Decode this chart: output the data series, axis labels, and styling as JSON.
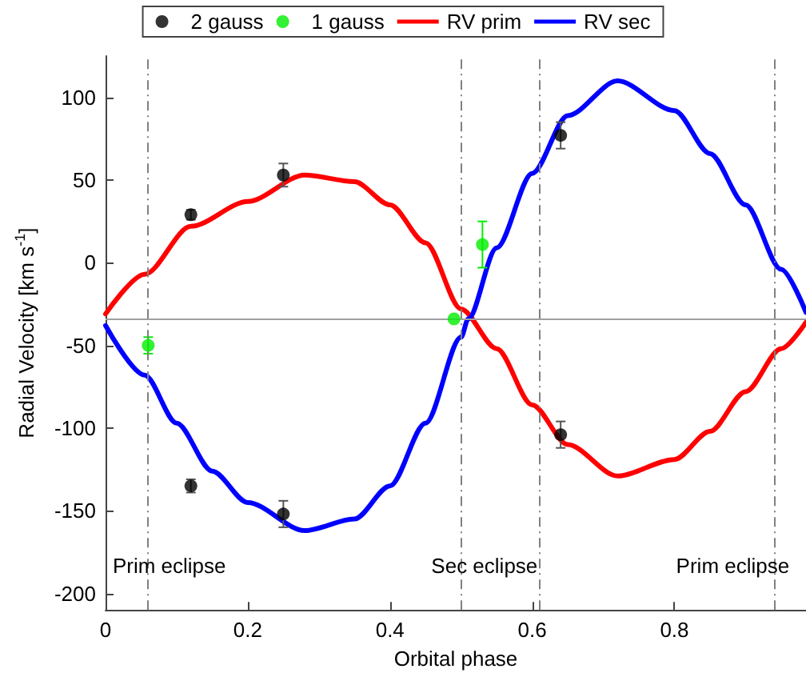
{
  "chart_data": {
    "type": "scatter",
    "xlabel": "Orbital phase",
    "ylabel": "Radial Velocity [km s$^{-1}$]",
    "xlim": [
      0,
      0.985
    ],
    "xticks": [
      0,
      0.2,
      0.4,
      0.6,
      0.8
    ],
    "ylim": [
      -210,
      125
    ],
    "yticks": [
      -200,
      -150,
      -100,
      -50,
      0,
      50,
      100
    ],
    "grid": false,
    "legend": "top",
    "series": [
      {
        "name": "2 gauss",
        "marker": "circle",
        "color": "#000000",
        "x": [
          0.12,
          0.25,
          0.64,
          0.12,
          0.25,
          0.64
        ],
        "values": [
          29,
          53,
          77,
          -135,
          -152,
          -104
        ],
        "errors": [
          3,
          7,
          8,
          4,
          8,
          8
        ]
      },
      {
        "name": "1 gauss",
        "marker": "circle",
        "color": "#00ee00",
        "x": [
          0.06,
          0.49,
          0.53
        ],
        "values": [
          -50,
          -34,
          11
        ],
        "errors": [
          5,
          null,
          14
        ]
      },
      {
        "name": "RV prim",
        "type": "line",
        "marker": "none",
        "color": "#ff0000",
        "line_style": "solid",
        "x": [
          0,
          0.055,
          0.12,
          0.2,
          0.28,
          0.35,
          0.4,
          0.45,
          0.5,
          0.55,
          0.6,
          0.65,
          0.72,
          0.8,
          0.85,
          0.9,
          0.95,
          0.985
        ],
        "values": [
          -31,
          -7,
          22,
          37,
          53,
          49,
          35,
          12,
          -28,
          -52,
          -86,
          -110,
          -129,
          -119,
          -102,
          -78,
          -52,
          -36
        ]
      },
      {
        "name": "RV sec",
        "type": "line",
        "marker": "none",
        "color": "#0000ff",
        "line_style": "solid",
        "x": [
          0,
          0.055,
          0.1,
          0.15,
          0.2,
          0.28,
          0.35,
          0.4,
          0.45,
          0.5,
          0.51,
          0.55,
          0.6,
          0.65,
          0.72,
          0.8,
          0.85,
          0.9,
          0.95,
          0.985
        ],
        "values": [
          -38,
          -68,
          -97,
          -126,
          -145,
          -162,
          -155,
          -135,
          -97,
          -45,
          -34,
          9,
          54,
          89,
          110,
          92,
          66,
          35,
          -4,
          -30
        ]
      }
    ],
    "ref_lines": [
      {
        "axis": "y",
        "value": -34,
        "color": "#a0a0a0",
        "line_style": "solid"
      },
      {
        "axis": "x",
        "value": 0.055,
        "label": "Prim eclipse",
        "color": "#808080",
        "line_style": "dashed"
      },
      {
        "axis": "x",
        "value": 0.503,
        "label": "Sec eclipse",
        "color": "#808080",
        "line_style": "dashed"
      },
      {
        "axis": "x",
        "value": 0.611,
        "color": "#808080",
        "line_style": "dashed"
      },
      {
        "axis": "x",
        "value": 0.942,
        "label": "Prim eclipse",
        "color": "#808080",
        "line_style": "dashed"
      }
    ]
  }
}
